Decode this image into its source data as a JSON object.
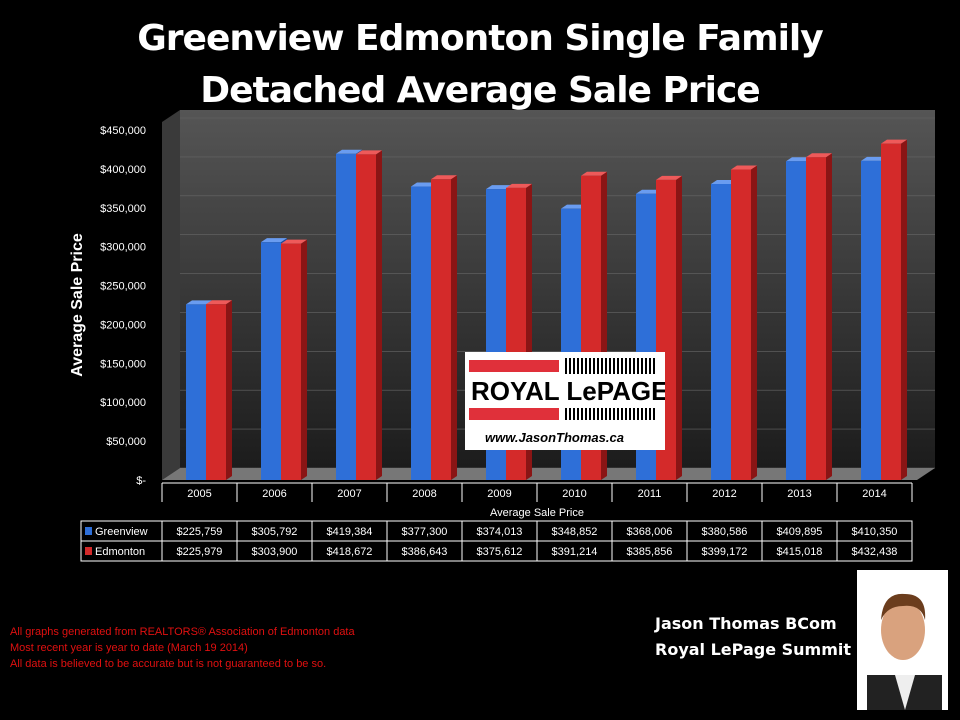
{
  "chart_data": {
    "type": "bar",
    "title": "Greenview Edmonton Single Family Detached Average Sale Price",
    "title_lines": [
      "Greenview Edmonton Single Family",
      "Detached Average Sale Price"
    ],
    "xlabel": "Average Sale Price",
    "ylabel": "Average Sale Price",
    "categories": [
      "2005",
      "2006",
      "2007",
      "2008",
      "2009",
      "2010",
      "2011",
      "2012",
      "2013",
      "2014"
    ],
    "series": [
      {
        "name": "Greenview",
        "color": "#2e6fd8",
        "values": [
          225759,
          305792,
          419384,
          377300,
          374013,
          348852,
          368006,
          380586,
          409895,
          410350
        ],
        "labels": [
          "$225,759",
          "$305,792",
          "$419,384",
          "$377,300",
          "$374,013",
          "$348,852",
          "$368,006",
          "$380,586",
          "$409,895",
          "$410,350"
        ]
      },
      {
        "name": "Edmonton",
        "color": "#d42a2a",
        "values": [
          225979,
          303900,
          418672,
          386643,
          375612,
          391214,
          385856,
          399172,
          415018,
          432438
        ],
        "labels": [
          "$225,979",
          "$303,900",
          "$418,672",
          "$386,643",
          "$375,612",
          "$391,214",
          "$385,856",
          "$399,172",
          "$415,018",
          "$432,438"
        ]
      }
    ],
    "ylim": [
      0,
      450000
    ],
    "yticks": [
      "$-",
      "$50,000",
      "$100,000",
      "$150,000",
      "$200,000",
      "$250,000",
      "$300,000",
      "$350,000",
      "$400,000",
      "$450,000"
    ],
    "legend": "data-table"
  },
  "logo": {
    "brand": "ROYAL LePAGE",
    "url": "www.JasonThomas.ca"
  },
  "notes": [
    "All graphs generated from REALTORS® Association of Edmonton data",
    "Most recent year is year to date (March 19 2014)",
    "All data is believed to be accurate but is not guaranteed to be so."
  ],
  "agent": {
    "name": "Jason Thomas BCom",
    "company": "Royal LePage Summit"
  }
}
